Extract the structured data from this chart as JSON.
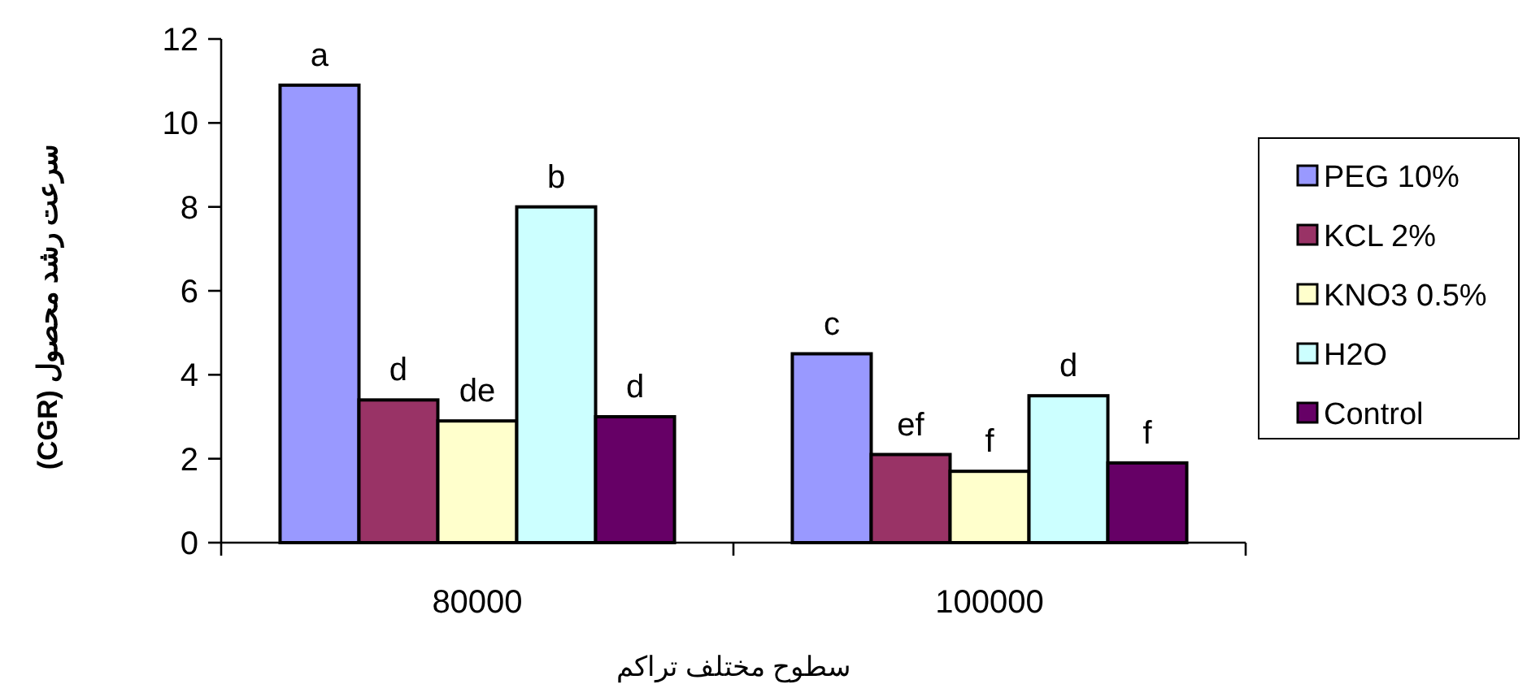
{
  "chart_data": {
    "type": "bar",
    "xlabel": "سطوح مختلف تراکم",
    "ylabel": "سرعت رشد محصول (CGR)",
    "categories": [
      "80000",
      "100000"
    ],
    "ylim": [
      0,
      12
    ],
    "yticks": [
      0,
      2,
      4,
      6,
      8,
      10,
      12
    ],
    "grid": false,
    "legend": "right",
    "series": [
      {
        "name": "PEG 10%",
        "color": "#9999ff",
        "values": [
          10.9,
          4.5
        ],
        "value_labels": [
          "a",
          "c"
        ]
      },
      {
        "name": "KCL 2%",
        "color": "#993366",
        "values": [
          3.4,
          2.1
        ],
        "value_labels": [
          "d",
          "ef"
        ]
      },
      {
        "name": "KNO3 0.5%",
        "color": "#ffffcc",
        "values": [
          2.9,
          1.7
        ],
        "value_labels": [
          "de",
          "f"
        ]
      },
      {
        "name": "H2O",
        "color": "#ccffff",
        "values": [
          8.0,
          3.5
        ],
        "value_labels": [
          "b",
          "d"
        ]
      },
      {
        "name": "Control",
        "color": "#660066",
        "values": [
          3.0,
          1.9
        ],
        "value_labels": [
          "d",
          "f"
        ]
      }
    ]
  }
}
